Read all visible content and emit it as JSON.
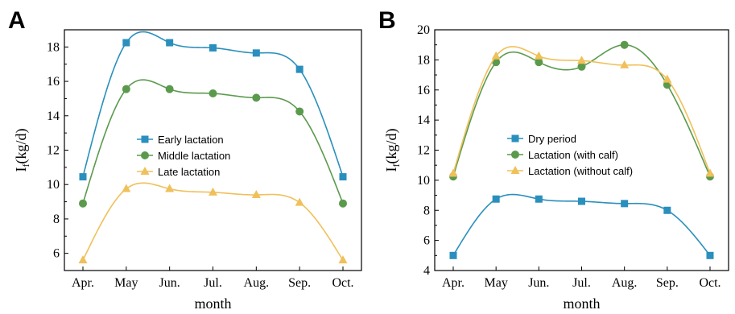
{
  "chart_data": [
    {
      "panel": "A",
      "type": "line",
      "categories": [
        "Apr.",
        "May",
        "Jun.",
        "Jul.",
        "Aug.",
        "Sep.",
        "Oct."
      ],
      "xlabel": "month",
      "ylabel_main": "I",
      "ylabel_sub": "f",
      "ylabel_rest": "(kg/d)",
      "ylim": [
        5,
        19
      ],
      "yticks": [
        6,
        8,
        10,
        12,
        14,
        16,
        18
      ],
      "grid": false,
      "legend": "center",
      "series": [
        {
          "name": "Early lactation",
          "marker": "square",
          "color": "#2a8fbd",
          "values": [
            10.45,
            18.25,
            18.25,
            17.95,
            17.65,
            16.7,
            10.45
          ]
        },
        {
          "name": "Middle lactation",
          "marker": "circle",
          "color": "#5b9a4d",
          "values": [
            8.9,
            15.55,
            15.55,
            15.3,
            15.05,
            14.25,
            8.9
          ]
        },
        {
          "name": "Late lactation",
          "marker": "triangle",
          "color": "#f0c05a",
          "values": [
            5.6,
            9.75,
            9.75,
            9.55,
            9.4,
            8.95,
            5.6
          ]
        }
      ]
    },
    {
      "panel": "B",
      "type": "line",
      "categories": [
        "Apr.",
        "May",
        "Jun.",
        "Jul.",
        "Aug.",
        "Sep.",
        "Oct."
      ],
      "xlabel": "month",
      "ylabel_main": "I",
      "ylabel_sub": "f",
      "ylabel_rest": "(kg/d)",
      "ylim": [
        4,
        20
      ],
      "yticks": [
        4,
        6,
        8,
        10,
        12,
        14,
        16,
        18,
        20
      ],
      "grid": false,
      "legend": "center",
      "series": [
        {
          "name": "Dry period",
          "marker": "square",
          "color": "#2a8fbd",
          "values": [
            5.0,
            8.75,
            8.75,
            8.6,
            8.45,
            8.0,
            5.0
          ]
        },
        {
          "name": "Lactation (with calf)",
          "marker": "circle",
          "color": "#5b9a4d",
          "values": [
            10.25,
            17.85,
            17.85,
            17.55,
            19.0,
            16.35,
            10.25
          ]
        },
        {
          "name": "Lactation (without calf)",
          "marker": "triangle",
          "color": "#f0c05a",
          "values": [
            10.45,
            18.25,
            18.25,
            17.95,
            17.65,
            16.7,
            10.45
          ]
        }
      ]
    }
  ]
}
